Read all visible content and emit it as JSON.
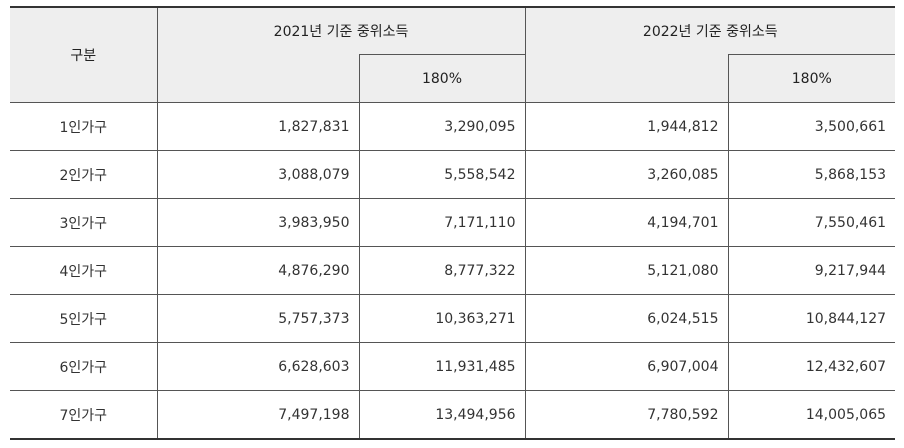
{
  "header": {
    "group_label": "구분",
    "y2021_label": "2021년 기준 중위소득",
    "y2022_label": "2022년 기준 중위소득",
    "pct_2021": "180%",
    "pct_2022": "180%"
  },
  "rows": [
    {
      "label": "1인가구",
      "v2021": "1,827,831",
      "p2021": "3,290,095",
      "v2022": "1,944,812",
      "p2022": "3,500,661"
    },
    {
      "label": "2인가구",
      "v2021": "3,088,079",
      "p2021": "5,558,542",
      "v2022": "3,260,085",
      "p2022": "5,868,153"
    },
    {
      "label": "3인가구",
      "v2021": "3,983,950",
      "p2021": "7,171,110",
      "v2022": "4,194,701",
      "p2022": "7,550,461"
    },
    {
      "label": "4인가구",
      "v2021": "4,876,290",
      "p2021": "8,777,322",
      "v2022": "5,121,080",
      "p2022": "9,217,944"
    },
    {
      "label": "5인가구",
      "v2021": "5,757,373",
      "p2021": "10,363,271",
      "v2022": "6,024,515",
      "p2022": "10,844,127"
    },
    {
      "label": "6인가구",
      "v2021": "6,628,603",
      "p2021": "11,931,485",
      "v2022": "6,907,004",
      "p2022": "12,432,607"
    },
    {
      "label": "7인가구",
      "v2021": "7,497,198",
      "p2021": "13,494,956",
      "v2022": "7,780,592",
      "p2022": "14,005,065"
    }
  ]
}
